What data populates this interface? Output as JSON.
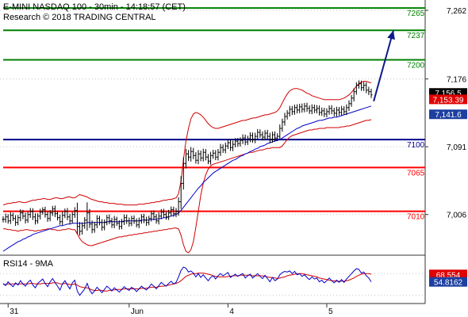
{
  "header": {
    "title": "E-MINI NASDAQ 100 - 30min - 14:18:57 (CET)",
    "credit": "Research © 2018 TRADING CENTRAL"
  },
  "colors": {
    "resistance": "#008000",
    "support": "#ff0000",
    "pivot": "#00008b",
    "price": "#000000",
    "bollinger": "#d00000",
    "moving_average": "#0000c8",
    "rsi": "#0000c8",
    "rsi_ma": "#d00000",
    "tag_blue": "#1c3fa0",
    "tag_red": "#e00000"
  },
  "chart_data": [
    {
      "type": "candlestick",
      "title": "E-MINI NASDAQ 100 - 30min - 14:18:57 (CET)",
      "ylim": [
        6955,
        7275
      ],
      "y_ticks": [
        {
          "value": 7262,
          "label": "7,262"
        },
        {
          "value": 7176,
          "label": "7,176"
        },
        {
          "value": 7091,
          "label": "7,091"
        },
        {
          "value": 7006,
          "label": "7,006"
        }
      ],
      "x_ticks": [
        {
          "index": 2,
          "label": "31"
        },
        {
          "index": 51,
          "label": "Jun"
        },
        {
          "index": 91,
          "label": "4"
        },
        {
          "index": 131,
          "label": "5"
        }
      ],
      "levels": [
        {
          "value": 7265,
          "label": "7265",
          "role": "resistance"
        },
        {
          "value": 7237,
          "label": "7237",
          "role": "resistance"
        },
        {
          "value": 7200,
          "label": "7200",
          "role": "resistance"
        },
        {
          "value": 7100,
          "label": "7100",
          "role": "pivot"
        },
        {
          "value": 7065,
          "label": "7065",
          "role": "support"
        },
        {
          "value": 7010,
          "label": "7010",
          "role": "support"
        }
      ],
      "price_tags": [
        {
          "value": 7156.5,
          "label": "7,156.5",
          "style": "black"
        },
        {
          "value": 7153.39,
          "label": "7,153.39",
          "style": "red"
        },
        {
          "value": 7141.6,
          "label": "7,141.6",
          "style": "blue"
        }
      ],
      "close": [
        7000,
        7003,
        6998,
        7005,
        7001,
        6996,
        7002,
        7008,
        7004,
        6999,
        7006,
        7010,
        7003,
        6998,
        7004,
        7009,
        7012,
        7006,
        7001,
        7008,
        7013,
        7007,
        7002,
        6997,
        7005,
        7010,
        7003,
        6998,
        7006,
        7011,
        6991,
        6985,
        6992,
        6999,
        7008,
        6994,
        6987,
        6993,
        7001,
        6996,
        6990,
        6996,
        7002,
        6998,
        6993,
        7000,
        6995,
        6991,
        6997,
        7002,
        6998,
        6995,
        7001,
        6998,
        6993,
        6998,
        7003,
        6999,
        6996,
        7001,
        7007,
        7003,
        6998,
        7004,
        7009,
        7006,
        7003,
        7008,
        7012,
        7007,
        7010,
        7022,
        7045,
        7070,
        7082,
        7078,
        7085,
        7080,
        7074,
        7082,
        7077,
        7084,
        7078,
        7073,
        7080,
        7083,
        7078,
        7084,
        7090,
        7087,
        7092,
        7096,
        7090,
        7094,
        7098,
        7095,
        7099,
        7102,
        7097,
        7101,
        7105,
        7100,
        7104,
        7109,
        7106,
        7103,
        7108,
        7104,
        7100,
        7106,
        7102,
        7104,
        7114,
        7122,
        7129,
        7133,
        7138,
        7135,
        7140,
        7137,
        7141,
        7138,
        7142,
        7139,
        7136,
        7140,
        7137,
        7139,
        7134,
        7136,
        7132,
        7135,
        7139,
        7136,
        7133,
        7137,
        7134,
        7138,
        7135,
        7140,
        7145,
        7152,
        7160,
        7168,
        7170,
        7165,
        7168,
        7162,
        7160,
        7156
      ],
      "range": [
        11,
        12,
        10,
        11,
        9,
        12,
        10,
        13,
        11,
        12,
        10,
        12,
        11,
        13,
        10,
        12,
        9,
        11,
        12,
        10,
        11,
        12,
        10,
        11,
        13,
        10,
        12,
        11,
        9,
        12,
        28,
        16,
        12,
        11,
        38,
        14,
        13,
        11,
        12,
        10,
        12,
        11,
        10,
        12,
        11,
        12,
        9,
        11,
        10,
        12,
        11,
        12,
        10,
        11,
        9,
        12,
        10,
        11,
        12,
        10,
        11,
        12,
        10,
        13,
        11,
        12,
        10,
        11,
        12,
        11,
        12,
        16,
        26,
        22,
        18,
        14,
        16,
        13,
        12,
        14,
        12,
        13,
        12,
        11,
        13,
        12,
        11,
        12,
        13,
        11,
        12,
        11,
        12,
        13,
        11,
        12,
        11,
        13,
        12,
        11,
        12,
        11,
        13,
        12,
        11,
        12,
        11,
        12,
        13,
        11,
        12,
        11,
        14,
        12,
        13,
        11,
        12,
        12,
        11,
        12,
        11,
        12,
        11,
        12,
        11,
        12,
        11,
        12,
        11,
        12,
        11,
        12,
        11,
        12,
        11,
        12,
        11,
        12,
        11,
        12,
        12,
        11,
        12,
        11,
        12,
        11,
        12,
        11,
        12,
        11
      ],
      "bb_upper": [
        7018,
        7019,
        7020,
        7020,
        7021,
        7021,
        7022,
        7022,
        7021,
        7021,
        7022,
        7023,
        7024,
        7024,
        7025,
        7025,
        7026,
        7026,
        7025,
        7025,
        7026,
        7027,
        7027,
        7026,
        7026,
        7027,
        7028,
        7028,
        7027,
        7027,
        7029,
        7031,
        7030,
        7029,
        7028,
        7026,
        7025,
        7024,
        7023,
        7022,
        7022,
        7021,
        7021,
        7020,
        7020,
        7020,
        7019,
        7019,
        7019,
        7018,
        7018,
        7018,
        7018,
        7018,
        7018,
        7019,
        7019,
        7019,
        7020,
        7020,
        7021,
        7021,
        7022,
        7022,
        7023,
        7024,
        7024,
        7025,
        7025,
        7026,
        7027,
        7032,
        7048,
        7075,
        7098,
        7114,
        7126,
        7132,
        7134,
        7133,
        7131,
        7128,
        7124,
        7120,
        7117,
        7115,
        7114,
        7114,
        7115,
        7116,
        7117,
        7118,
        7119,
        7120,
        7121,
        7122,
        7123,
        7124,
        7124,
        7125,
        7126,
        7127,
        7127,
        7128,
        7129,
        7130,
        7131,
        7131,
        7132,
        7133,
        7134,
        7136,
        7140,
        7146,
        7152,
        7157,
        7161,
        7163,
        7164,
        7164,
        7163,
        7162,
        7160,
        7158,
        7157,
        7155,
        7154,
        7153,
        7152,
        7151,
        7150,
        7150,
        7150,
        7150,
        7150,
        7150,
        7150,
        7151,
        7152,
        7154,
        7156,
        7159,
        7163,
        7167,
        7170,
        7172,
        7173,
        7173,
        7172,
        7171
      ],
      "bb_lower": [
        6988,
        6988,
        6987,
        6987,
        6986,
        6986,
        6985,
        6986,
        6986,
        6987,
        6987,
        6986,
        6986,
        6985,
        6986,
        6986,
        6987,
        6987,
        6988,
        6988,
        6987,
        6987,
        6986,
        6986,
        6987,
        6987,
        6988,
        6988,
        6987,
        6987,
        6982,
        6976,
        6972,
        6970,
        6968,
        6967,
        6967,
        6968,
        6969,
        6970,
        6971,
        6972,
        6973,
        6974,
        6975,
        6976,
        6977,
        6978,
        6978,
        6979,
        6979,
        6980,
        6980,
        6981,
        6981,
        6982,
        6982,
        6983,
        6983,
        6984,
        6984,
        6985,
        6985,
        6986,
        6986,
        6987,
        6987,
        6988,
        6988,
        6989,
        6989,
        6988,
        6980,
        6968,
        6960,
        6958,
        6962,
        6972,
        6990,
        7010,
        7030,
        7045,
        7056,
        7063,
        7067,
        7069,
        7070,
        7071,
        7072,
        7073,
        7074,
        7075,
        7076,
        7077,
        7078,
        7079,
        7080,
        7081,
        7082,
        7083,
        7084,
        7084,
        7085,
        7086,
        7087,
        7087,
        7088,
        7089,
        7089,
        7090,
        7090,
        7090,
        7090,
        7092,
        7096,
        7100,
        7103,
        7105,
        7106,
        7107,
        7108,
        7109,
        7110,
        7111,
        7112,
        7112,
        7113,
        7113,
        7114,
        7114,
        7114,
        7115,
        7115,
        7115,
        7115,
        7115,
        7115,
        7116,
        7116,
        7117,
        7117,
        7118,
        7119,
        7120,
        7121,
        7122,
        7123,
        7124,
        7124,
        7125
      ],
      "ma": [
        6960,
        6962,
        6964,
        6966,
        6968,
        6970,
        6972,
        6973,
        6975,
        6976,
        6978,
        6979,
        6981,
        6982,
        6983,
        6984,
        6985,
        6986,
        6987,
        6988,
        6989,
        6990,
        6991,
        6992,
        6992,
        6993,
        6994,
        6994,
        6995,
        6995,
        6995,
        6995,
        6995,
        6995,
        6996,
        6996,
        6996,
        6996,
        6996,
        6996,
        6996,
        6996,
        6997,
        6997,
        6997,
        6997,
        6997,
        6997,
        6997,
        6998,
        6998,
        6998,
        6998,
        6998,
        6998,
        6998,
        6999,
        6999,
        6999,
        6999,
        7000,
        7000,
        7000,
        7001,
        7001,
        7002,
        7002,
        7003,
        7004,
        7005,
        7006,
        7008,
        7011,
        7015,
        7019,
        7023,
        7027,
        7031,
        7035,
        7039,
        7042,
        7046,
        7049,
        7052,
        7055,
        7058,
        7060,
        7062,
        7064,
        7066,
        7068,
        7070,
        7072,
        7074,
        7075,
        7077,
        7079,
        7080,
        7082,
        7083,
        7085,
        7086,
        7088,
        7089,
        7091,
        7092,
        7093,
        7095,
        7096,
        7097,
        7098,
        7099,
        7100,
        7102,
        7104,
        7106,
        7108,
        7110,
        7112,
        7114,
        7115,
        7117,
        7118,
        7119,
        7120,
        7121,
        7122,
        7123,
        7124,
        7124,
        7125,
        7126,
        7127,
        7127,
        7128,
        7128,
        7129,
        7130,
        7131,
        7132,
        7133,
        7134,
        7135,
        7136,
        7137,
        7138,
        7139,
        7140,
        7141,
        7142
      ],
      "forecast": {
        "from": [
          150,
          7148
        ],
        "to": [
          156,
          7237
        ]
      }
    },
    {
      "type": "line",
      "title": "RSI14 - 9MA",
      "ylim": [
        15,
        85
      ],
      "price_tags": [
        {
          "value": 68.554,
          "label": "68.554",
          "style": "red"
        },
        {
          "value": 54.8162,
          "label": "54.8162",
          "style": "blue"
        }
      ],
      "series": [
        {
          "name": "RSI14",
          "values": [
            52,
            48,
            55,
            50,
            46,
            53,
            49,
            57,
            51,
            47,
            54,
            58,
            49,
            44,
            52,
            56,
            60,
            52,
            46,
            55,
            61,
            54,
            47,
            40,
            51,
            57,
            49,
            42,
            53,
            58,
            38,
            30,
            36,
            42,
            52,
            40,
            33,
            38,
            45,
            40,
            35,
            41,
            47,
            43,
            38,
            44,
            40,
            36,
            41,
            46,
            42,
            39,
            45,
            42,
            37,
            42,
            47,
            43,
            40,
            45,
            51,
            47,
            42,
            48,
            54,
            50,
            47,
            52,
            56,
            51,
            54,
            64,
            76,
            82,
            80,
            73,
            75,
            71,
            64,
            70,
            63,
            68,
            62,
            57,
            63,
            66,
            60,
            66,
            70,
            66,
            69,
            72,
            63,
            66,
            69,
            65,
            68,
            70,
            62,
            66,
            69,
            62,
            66,
            70,
            65,
            61,
            67,
            61,
            55,
            63,
            57,
            60,
            68,
            72,
            74,
            73,
            75,
            70,
            74,
            68,
            70,
            65,
            68,
            63,
            59,
            64,
            60,
            62,
            55,
            58,
            53,
            57,
            62,
            57,
            53,
            58,
            54,
            59,
            54,
            60,
            65,
            70,
            75,
            79,
            78,
            71,
            73,
            66,
            62,
            55
          ]
        },
        {
          "name": "9MA",
          "values": [
            50,
            50,
            51,
            51,
            51,
            51,
            51,
            51,
            51,
            51,
            51,
            52,
            52,
            51,
            51,
            51,
            52,
            52,
            52,
            52,
            53,
            53,
            53,
            51,
            51,
            52,
            51,
            50,
            50,
            51,
            49,
            46,
            45,
            44,
            44,
            42,
            40,
            39,
            39,
            40,
            39,
            38,
            38,
            39,
            40,
            40,
            41,
            41,
            41,
            42,
            42,
            42,
            42,
            42,
            42,
            42,
            43,
            43,
            43,
            44,
            45,
            45,
            45,
            46,
            47,
            47,
            48,
            49,
            50,
            51,
            52,
            54,
            57,
            61,
            65,
            67,
            69,
            70,
            70,
            71,
            71,
            71,
            70,
            69,
            68,
            66,
            65,
            64,
            64,
            64,
            64,
            65,
            65,
            66,
            66,
            66,
            67,
            67,
            67,
            67,
            67,
            66,
            66,
            66,
            66,
            66,
            65,
            64,
            63,
            63,
            62,
            61,
            62,
            63,
            64,
            66,
            67,
            68,
            69,
            70,
            70,
            70,
            69,
            68,
            67,
            66,
            65,
            64,
            62,
            61,
            60,
            59,
            58,
            57,
            57,
            56,
            56,
            56,
            56,
            57,
            58,
            60,
            62,
            65,
            67,
            69,
            70,
            70,
            70,
            69
          ]
        }
      ]
    }
  ]
}
